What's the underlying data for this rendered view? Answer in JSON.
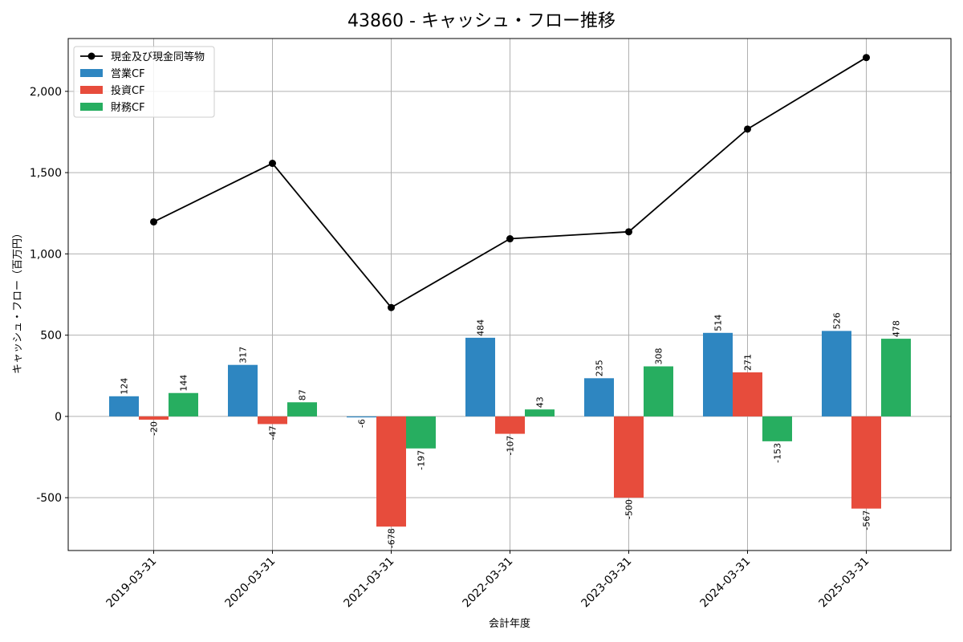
{
  "chart_data": {
    "type": "bar",
    "title": "43860 - キャッシュ・フロー推移",
    "xlabel": "会計年度",
    "ylabel": "キャッシュ・フロー（百万円）",
    "categories": [
      "2019-03-31",
      "2020-03-31",
      "2021-03-31",
      "2022-03-31",
      "2023-03-31",
      "2024-03-31",
      "2025-03-31"
    ],
    "ylim": [
      -825,
      2325
    ],
    "yticks": [
      -500,
      0,
      500,
      1000,
      1500,
      2000
    ],
    "ytick_labels": [
      "-500",
      "0",
      "500",
      "1,000",
      "1,500",
      "2,000"
    ],
    "grid": true,
    "legend_position": "top-left",
    "series": [
      {
        "name": "営業CF",
        "kind": "bar",
        "color": "#2e86c1",
        "values": [
          124,
          317,
          -6,
          484,
          235,
          514,
          526
        ],
        "labels": [
          "124",
          "317",
          "-6",
          "484",
          "235",
          "514",
          "526"
        ]
      },
      {
        "name": "投資CF",
        "kind": "bar",
        "color": "#e74c3c",
        "values": [
          -20,
          -47,
          -678,
          -107,
          -500,
          271,
          -567
        ],
        "labels": [
          "-20",
          "-47",
          "-678",
          "-107",
          "-500",
          "271",
          "-567"
        ]
      },
      {
        "name": "財務CF",
        "kind": "bar",
        "color": "#27ae60",
        "values": [
          144,
          87,
          -197,
          43,
          308,
          -153,
          478
        ],
        "labels": [
          "144",
          "87",
          "-197",
          "43",
          "308",
          "-153",
          "478"
        ]
      },
      {
        "name": "現金及び現金同等物",
        "kind": "line",
        "color": "#000000",
        "values": [
          1197,
          1557,
          670,
          1093,
          1136,
          1768,
          2208
        ]
      }
    ]
  }
}
